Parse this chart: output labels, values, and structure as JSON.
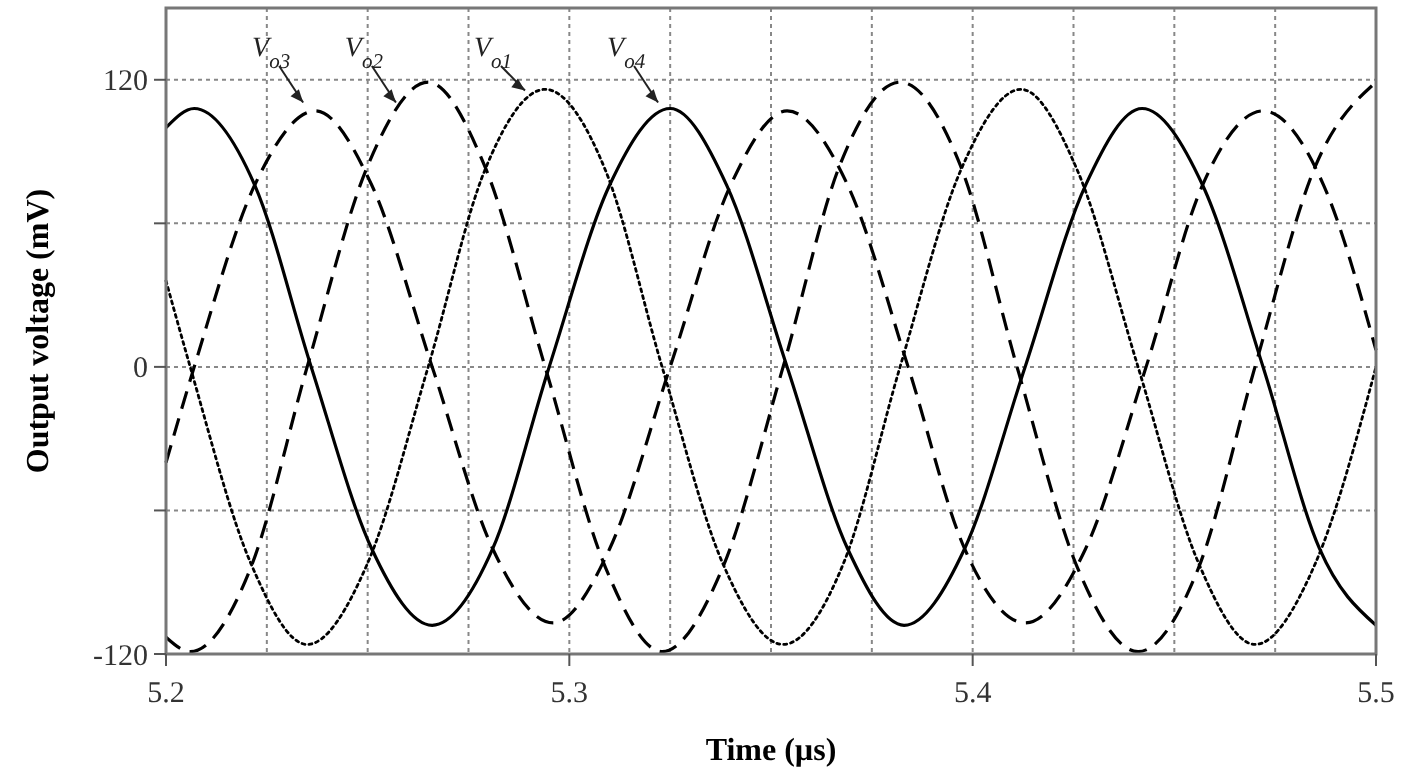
{
  "chart_data": {
    "type": "line",
    "xlabel": "Time (µs)",
    "ylabel": "Output voltage (mV)",
    "xlim": [
      5.2,
      5.5
    ],
    "ylim": [
      -120,
      150
    ],
    "xticks": [
      5.2,
      {
        "value": 5.225,
        "label": null
      },
      {
        "value": 5.25,
        "label": null
      },
      {
        "value": 5.275,
        "label": null
      },
      5.3,
      {
        "value": 5.325,
        "label": null
      },
      {
        "value": 5.35,
        "label": null
      },
      {
        "value": 5.375,
        "label": null
      },
      5.4,
      {
        "value": 5.425,
        "label": null
      },
      {
        "value": 5.45,
        "label": null
      },
      {
        "value": 5.475,
        "label": null
      },
      5.5
    ],
    "yticks": [
      -120,
      {
        "value": -60,
        "label": null
      },
      0,
      {
        "value": 60,
        "label": null
      },
      120
    ],
    "grid": true,
    "series": [
      {
        "color": "#000000",
        "line_style": "solid",
        "x": [
          5.2,
          5.207,
          5.222,
          5.236,
          5.251,
          5.266,
          5.281,
          5.295,
          5.31,
          5.325,
          5.339,
          5.354,
          5.369,
          5.383,
          5.398,
          5.413,
          5.428,
          5.442,
          5.457,
          5.472,
          5.486,
          5.5
        ],
        "values": [
          100,
          108,
          76,
          0,
          -76,
          -108,
          -76,
          0,
          76,
          108,
          76,
          0,
          -76,
          -108,
          -76,
          0,
          76,
          108,
          76,
          0,
          -76,
          -108
        ]
      },
      {
        "color": "#000000",
        "line_style": "dotted",
        "x": [
          5.2,
          5.206,
          5.221,
          5.235,
          5.25,
          5.265,
          5.279,
          5.294,
          5.309,
          5.323,
          5.338,
          5.353,
          5.368,
          5.382,
          5.397,
          5.412,
          5.426,
          5.441,
          5.456,
          5.47,
          5.485,
          5.5
        ],
        "values": [
          36,
          0,
          -82,
          -116,
          -82,
          0,
          82,
          116,
          82,
          0,
          -82,
          -116,
          -82,
          0,
          82,
          116,
          82,
          0,
          -82,
          -116,
          -82,
          0
        ]
      },
      {
        "color": "#000000",
        "line_style": "dashed",
        "x": [
          5.2,
          5.206,
          5.221,
          5.235,
          5.25,
          5.265,
          5.279,
          5.294,
          5.309,
          5.323,
          5.338,
          5.353,
          5.367,
          5.382,
          5.397,
          5.411,
          5.426,
          5.441,
          5.456,
          5.47,
          5.485,
          5.5
        ],
        "values": [
          -113,
          -119,
          -84,
          0,
          84,
          119,
          84,
          0,
          -84,
          -119,
          -84,
          0,
          84,
          119,
          84,
          0,
          -84,
          -119,
          -84,
          0,
          84,
          119
        ]
      },
      {
        "color": "#000000",
        "line_style": "dashed",
        "x": [
          5.2,
          5.207,
          5.222,
          5.237,
          5.251,
          5.266,
          5.281,
          5.296,
          5.31,
          5.325,
          5.34,
          5.354,
          5.369,
          5.384,
          5.398,
          5.413,
          5.428,
          5.443,
          5.457,
          5.472,
          5.487,
          5.5
        ],
        "values": [
          -40,
          0,
          76,
          107,
          76,
          0,
          -76,
          -107,
          -76,
          0,
          76,
          107,
          76,
          0,
          -76,
          -107,
          -76,
          0,
          76,
          107,
          76,
          7
        ]
      }
    ],
    "annotations": [
      {
        "text": "V$_{o3}$",
        "x": 5.234,
        "y": 108
      },
      {
        "text": "V$_{o2}$",
        "x": 5.257,
        "y": 108
      },
      {
        "text": "V$_{o1}$",
        "x": 5.289,
        "y": 113
      },
      {
        "text": "V$_{o4}$",
        "x": 5.322,
        "y": 108
      }
    ]
  }
}
